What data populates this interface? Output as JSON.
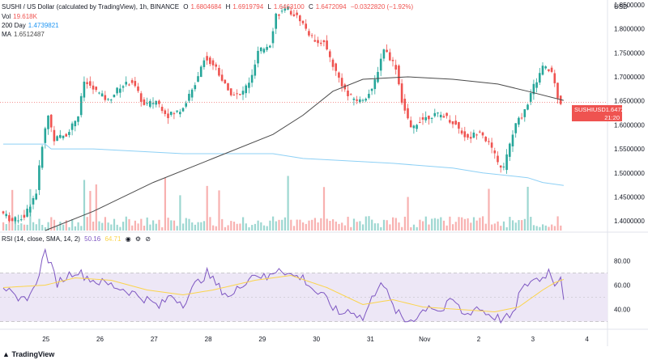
{
  "header": {
    "symbol": "SUSHI / US Dollar (calculated by TradingView), 1h, BINANCE",
    "o_label": "O",
    "o_value": "1.6804684",
    "h_label": "H",
    "h_value": "1.6919794",
    "l_label": "L",
    "l_value": "1.6463100",
    "c_label": "C",
    "c_value": "1.6472094",
    "change": "−0.0322820 (−1.92%)",
    "vol_label": "Vol",
    "vol_value": "19.618K",
    "ma200_label": "200 Day",
    "ma200_value": "1.4739821",
    "ma_label": "MA",
    "ma_value": "1.6512487"
  },
  "price_tag": {
    "symbol": "SUSHIUSD",
    "price": "1.6472094",
    "countdown": "21:20"
  },
  "currency": "USD",
  "rsi_header": {
    "label": "RSI (14, close, SMA, 14, 2)",
    "rsi": "50.16",
    "sma": "64.71"
  },
  "logo": "TradingView",
  "colors": {
    "up": "#26a69a",
    "down": "#ef5350",
    "ma": "#4a4a4a",
    "ma200": "#8dd0f5",
    "rsi": "#7e57c2",
    "rsi_sma": "#fbd44b",
    "rsi_band": "#ede7f6"
  },
  "icons": [
    "eye-icon",
    "settings-icon",
    "delete-icon"
  ],
  "chart_data": [
    {
      "type": "candlestick",
      "title": "SUSHI / US Dollar (calculated by TradingView), 1h, BINANCE",
      "x": [
        "25",
        "26",
        "27",
        "28",
        "29",
        "30",
        "31",
        "Nov",
        "2",
        "3",
        "4"
      ],
      "ylim": [
        1.38,
        1.86
      ],
      "yticks": [
        1.4,
        1.45,
        1.5,
        1.55,
        1.6,
        1.65,
        1.7,
        1.75,
        1.8,
        1.85
      ],
      "ytick_labels": [
        "1.4000000",
        "1.4500000",
        "1.5000000",
        "1.5500000",
        "1.6000000",
        "1.6500000",
        "1.7000000",
        "1.7500000",
        "1.8000000",
        "1.8500000"
      ],
      "price_path": [
        [
          0,
          1.42
        ],
        [
          4,
          1.4
        ],
        [
          8,
          1.41
        ],
        [
          12,
          1.46
        ],
        [
          14,
          1.56
        ],
        [
          16,
          1.62
        ],
        [
          18,
          1.57
        ],
        [
          22,
          1.58
        ],
        [
          26,
          1.62
        ],
        [
          28,
          1.69
        ],
        [
          32,
          1.67
        ],
        [
          36,
          1.65
        ],
        [
          40,
          1.68
        ],
        [
          44,
          1.69
        ],
        [
          48,
          1.64
        ],
        [
          52,
          1.65
        ],
        [
          56,
          1.62
        ],
        [
          60,
          1.63
        ],
        [
          64,
          1.67
        ],
        [
          68,
          1.74
        ],
        [
          72,
          1.72
        ],
        [
          76,
          1.67
        ],
        [
          80,
          1.66
        ],
        [
          84,
          1.7
        ],
        [
          86,
          1.75
        ],
        [
          90,
          1.77
        ],
        [
          92,
          1.83
        ],
        [
          96,
          1.84
        ],
        [
          100,
          1.82
        ],
        [
          104,
          1.78
        ],
        [
          108,
          1.77
        ],
        [
          112,
          1.71
        ],
        [
          116,
          1.66
        ],
        [
          120,
          1.65
        ],
        [
          124,
          1.67
        ],
        [
          128,
          1.76
        ],
        [
          132,
          1.72
        ],
        [
          134,
          1.65
        ],
        [
          137,
          1.59
        ],
        [
          140,
          1.61
        ],
        [
          144,
          1.62
        ],
        [
          148,
          1.62
        ],
        [
          152,
          1.6
        ],
        [
          156,
          1.57
        ],
        [
          160,
          1.59
        ],
        [
          164,
          1.55
        ],
        [
          166,
          1.52
        ],
        [
          168,
          1.51
        ],
        [
          170,
          1.56
        ],
        [
          172,
          1.6
        ],
        [
          175,
          1.63
        ],
        [
          178,
          1.68
        ],
        [
          181,
          1.72
        ],
        [
          184,
          1.71
        ],
        [
          186,
          1.66
        ],
        [
          187,
          1.647
        ]
      ],
      "ma_path": [
        [
          14,
          1.38
        ],
        [
          30,
          1.42
        ],
        [
          50,
          1.48
        ],
        [
          70,
          1.53
        ],
        [
          90,
          1.58
        ],
        [
          100,
          1.62
        ],
        [
          110,
          1.67
        ],
        [
          120,
          1.695
        ],
        [
          135,
          1.7
        ],
        [
          150,
          1.695
        ],
        [
          165,
          1.685
        ],
        [
          175,
          1.67
        ],
        [
          187,
          1.651
        ]
      ],
      "ma200_path": [
        [
          0,
          1.56
        ],
        [
          14,
          1.56
        ],
        [
          16,
          1.55
        ],
        [
          30,
          1.55
        ],
        [
          60,
          1.54
        ],
        [
          90,
          1.54
        ],
        [
          100,
          1.53
        ],
        [
          115,
          1.525
        ],
        [
          130,
          1.52
        ],
        [
          150,
          1.51
        ],
        [
          160,
          1.5
        ],
        [
          175,
          1.49
        ],
        [
          180,
          1.48
        ],
        [
          187,
          1.474
        ]
      ],
      "volume_note": "volume histogram bars colored by candle direction"
    },
    {
      "type": "line",
      "title": "RSI (14, close, SMA, 14, 2)",
      "ylim": [
        25,
        95
      ],
      "yticks": [
        40,
        60,
        80
      ],
      "ytick_labels": [
        "40.00",
        "60.00",
        "80.00"
      ],
      "bands": [
        30,
        70
      ],
      "series": [
        {
          "name": "RSI",
          "values": [
            [
              0,
              60
            ],
            [
              5,
              45
            ],
            [
              10,
              55
            ],
            [
              14,
              88
            ],
            [
              18,
              62
            ],
            [
              24,
              72
            ],
            [
              30,
              64
            ],
            [
              36,
              60
            ],
            [
              42,
              55
            ],
            [
              48,
              48
            ],
            [
              52,
              42
            ],
            [
              56,
              52
            ],
            [
              60,
              45
            ],
            [
              64,
              60
            ],
            [
              68,
              70
            ],
            [
              72,
              58
            ],
            [
              76,
              50
            ],
            [
              80,
              62
            ],
            [
              84,
              70
            ],
            [
              88,
              65
            ],
            [
              92,
              75
            ],
            [
              96,
              68
            ],
            [
              100,
              66
            ],
            [
              104,
              55
            ],
            [
              108,
              48
            ],
            [
              112,
              36
            ],
            [
              116,
              40
            ],
            [
              120,
              32
            ],
            [
              124,
              54
            ],
            [
              126,
              65
            ],
            [
              130,
              42
            ],
            [
              134,
              30
            ],
            [
              138,
              34
            ],
            [
              142,
              44
            ],
            [
              146,
              38
            ],
            [
              150,
              48
            ],
            [
              154,
              35
            ],
            [
              158,
              42
            ],
            [
              162,
              36
            ],
            [
              166,
              32
            ],
            [
              170,
              34
            ],
            [
              172,
              52
            ],
            [
              176,
              64
            ],
            [
              180,
              66
            ],
            [
              182,
              72
            ],
            [
              184,
              62
            ],
            [
              186,
              68
            ],
            [
              187,
              50.16
            ]
          ]
        },
        {
          "name": "SMA",
          "values": [
            [
              0,
              58
            ],
            [
              14,
              60
            ],
            [
              24,
              66
            ],
            [
              36,
              64
            ],
            [
              48,
              56
            ],
            [
              60,
              52
            ],
            [
              70,
              56
            ],
            [
              84,
              64
            ],
            [
              96,
              68
            ],
            [
              108,
              58
            ],
            [
              120,
              44
            ],
            [
              130,
              48
            ],
            [
              140,
              42
            ],
            [
              152,
              40
            ],
            [
              164,
              38
            ],
            [
              172,
              42
            ],
            [
              180,
              56
            ],
            [
              184,
              62
            ],
            [
              187,
              64.71
            ]
          ]
        }
      ]
    }
  ]
}
